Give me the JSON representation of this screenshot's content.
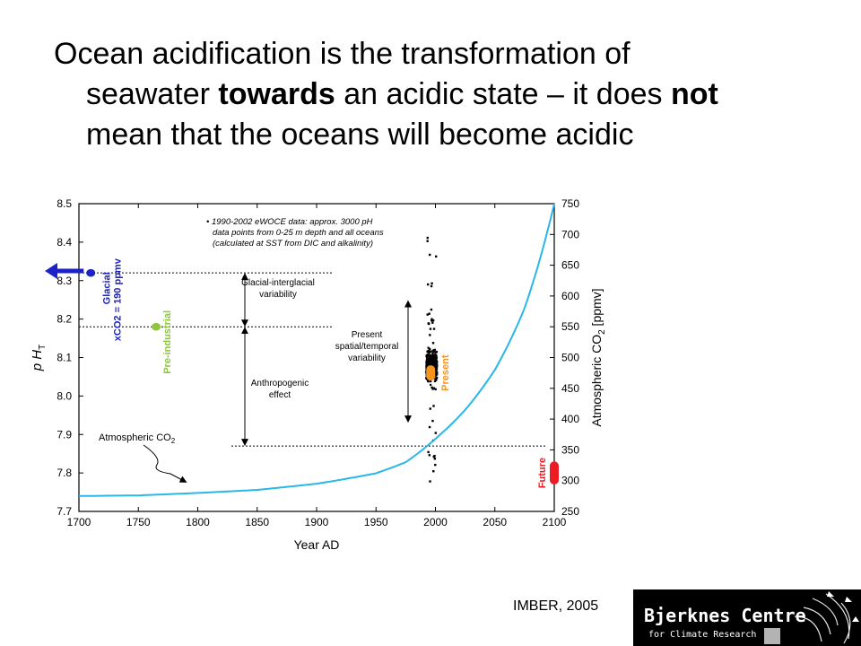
{
  "title": {
    "part1": "Ocean acidification is the transformation of",
    "part2": "seawater ",
    "bold1": "towards",
    "part3": " an acidic state – it does ",
    "bold2": "not",
    "part4": "mean that the oceans will become acidic"
  },
  "source": "IMBER, 2005",
  "logo": {
    "line1": "Bjerknes Centre",
    "line2": "for Climate Research"
  },
  "chart_data": {
    "type": "scatter",
    "xlabel": "Year AD",
    "ylabel_left": "p H",
    "ylabel_left_sub": "T",
    "ylabel_right": "Atmospheric CO",
    "ylabel_right_sub": "2",
    "ylabel_right_unit": " [ppmv]",
    "xlim": [
      1700,
      2100
    ],
    "ylim_left": [
      7.7,
      8.5
    ],
    "ylim_right": [
      250,
      750
    ],
    "x_ticks": [
      1700,
      1750,
      1800,
      1850,
      1900,
      1950,
      2000,
      2050,
      2100
    ],
    "y_left_ticks": [
      "7.7",
      "7.8",
      "7.9",
      "8.0",
      "8.1",
      "8.2",
      "8.3",
      "8.4",
      "8.5"
    ],
    "y_right_ticks": [
      250,
      300,
      350,
      400,
      450,
      500,
      550,
      600,
      650,
      700,
      750
    ],
    "co2_curve": {
      "name": "Atmospheric CO2",
      "x": [
        1700,
        1750,
        1800,
        1850,
        1900,
        1925,
        1950,
        1975,
        2000,
        2025,
        2050,
        2075,
        2100
      ],
      "y": [
        275,
        276,
        280,
        285,
        295,
        303,
        312,
        330,
        368,
        415,
        480,
        580,
        750
      ]
    },
    "note_text": [
      "• 1990-2002 eWOCE data: approx. 3000 pH",
      "data points from 0-25 m depth and all oceans",
      "(calculated at SST from DIC and alkalinity)"
    ],
    "ref_lines": {
      "glacial_ph": 8.32,
      "preindustrial_ph": 8.18,
      "present_ph": 8.05,
      "present_ph_line": 7.87
    },
    "markers": [
      {
        "name": "Glacial",
        "sublabel": "xCO2 = 190 ppmv",
        "x": 1710,
        "ph": [
          8.31,
          8.33
        ],
        "color": "#1c22c8"
      },
      {
        "name": "Pre-industrial",
        "x": 1765,
        "ph": [
          8.17,
          8.19
        ],
        "color": "#8dc63f"
      },
      {
        "name": "Present",
        "x": 1996,
        "ph": [
          8.04,
          8.08
        ],
        "color": "#f7941d"
      },
      {
        "name": "Future",
        "x": 2100,
        "ph": [
          7.77,
          7.83
        ],
        "color": "#ed1c24"
      }
    ],
    "arrow_labels": {
      "glacial_interglacial": [
        "Glacial-interglacial",
        "variability"
      ],
      "anthropogenic": [
        "Anthropogenic",
        "effect"
      ],
      "present_variability": [
        "Present",
        "spatial/temporal",
        "variability"
      ]
    },
    "curve_label": "Atmospheric CO",
    "curve_label_sub": "2",
    "colors": {
      "curve": "#29b6e8",
      "axis": "#000000",
      "dots": "#000000"
    }
  }
}
